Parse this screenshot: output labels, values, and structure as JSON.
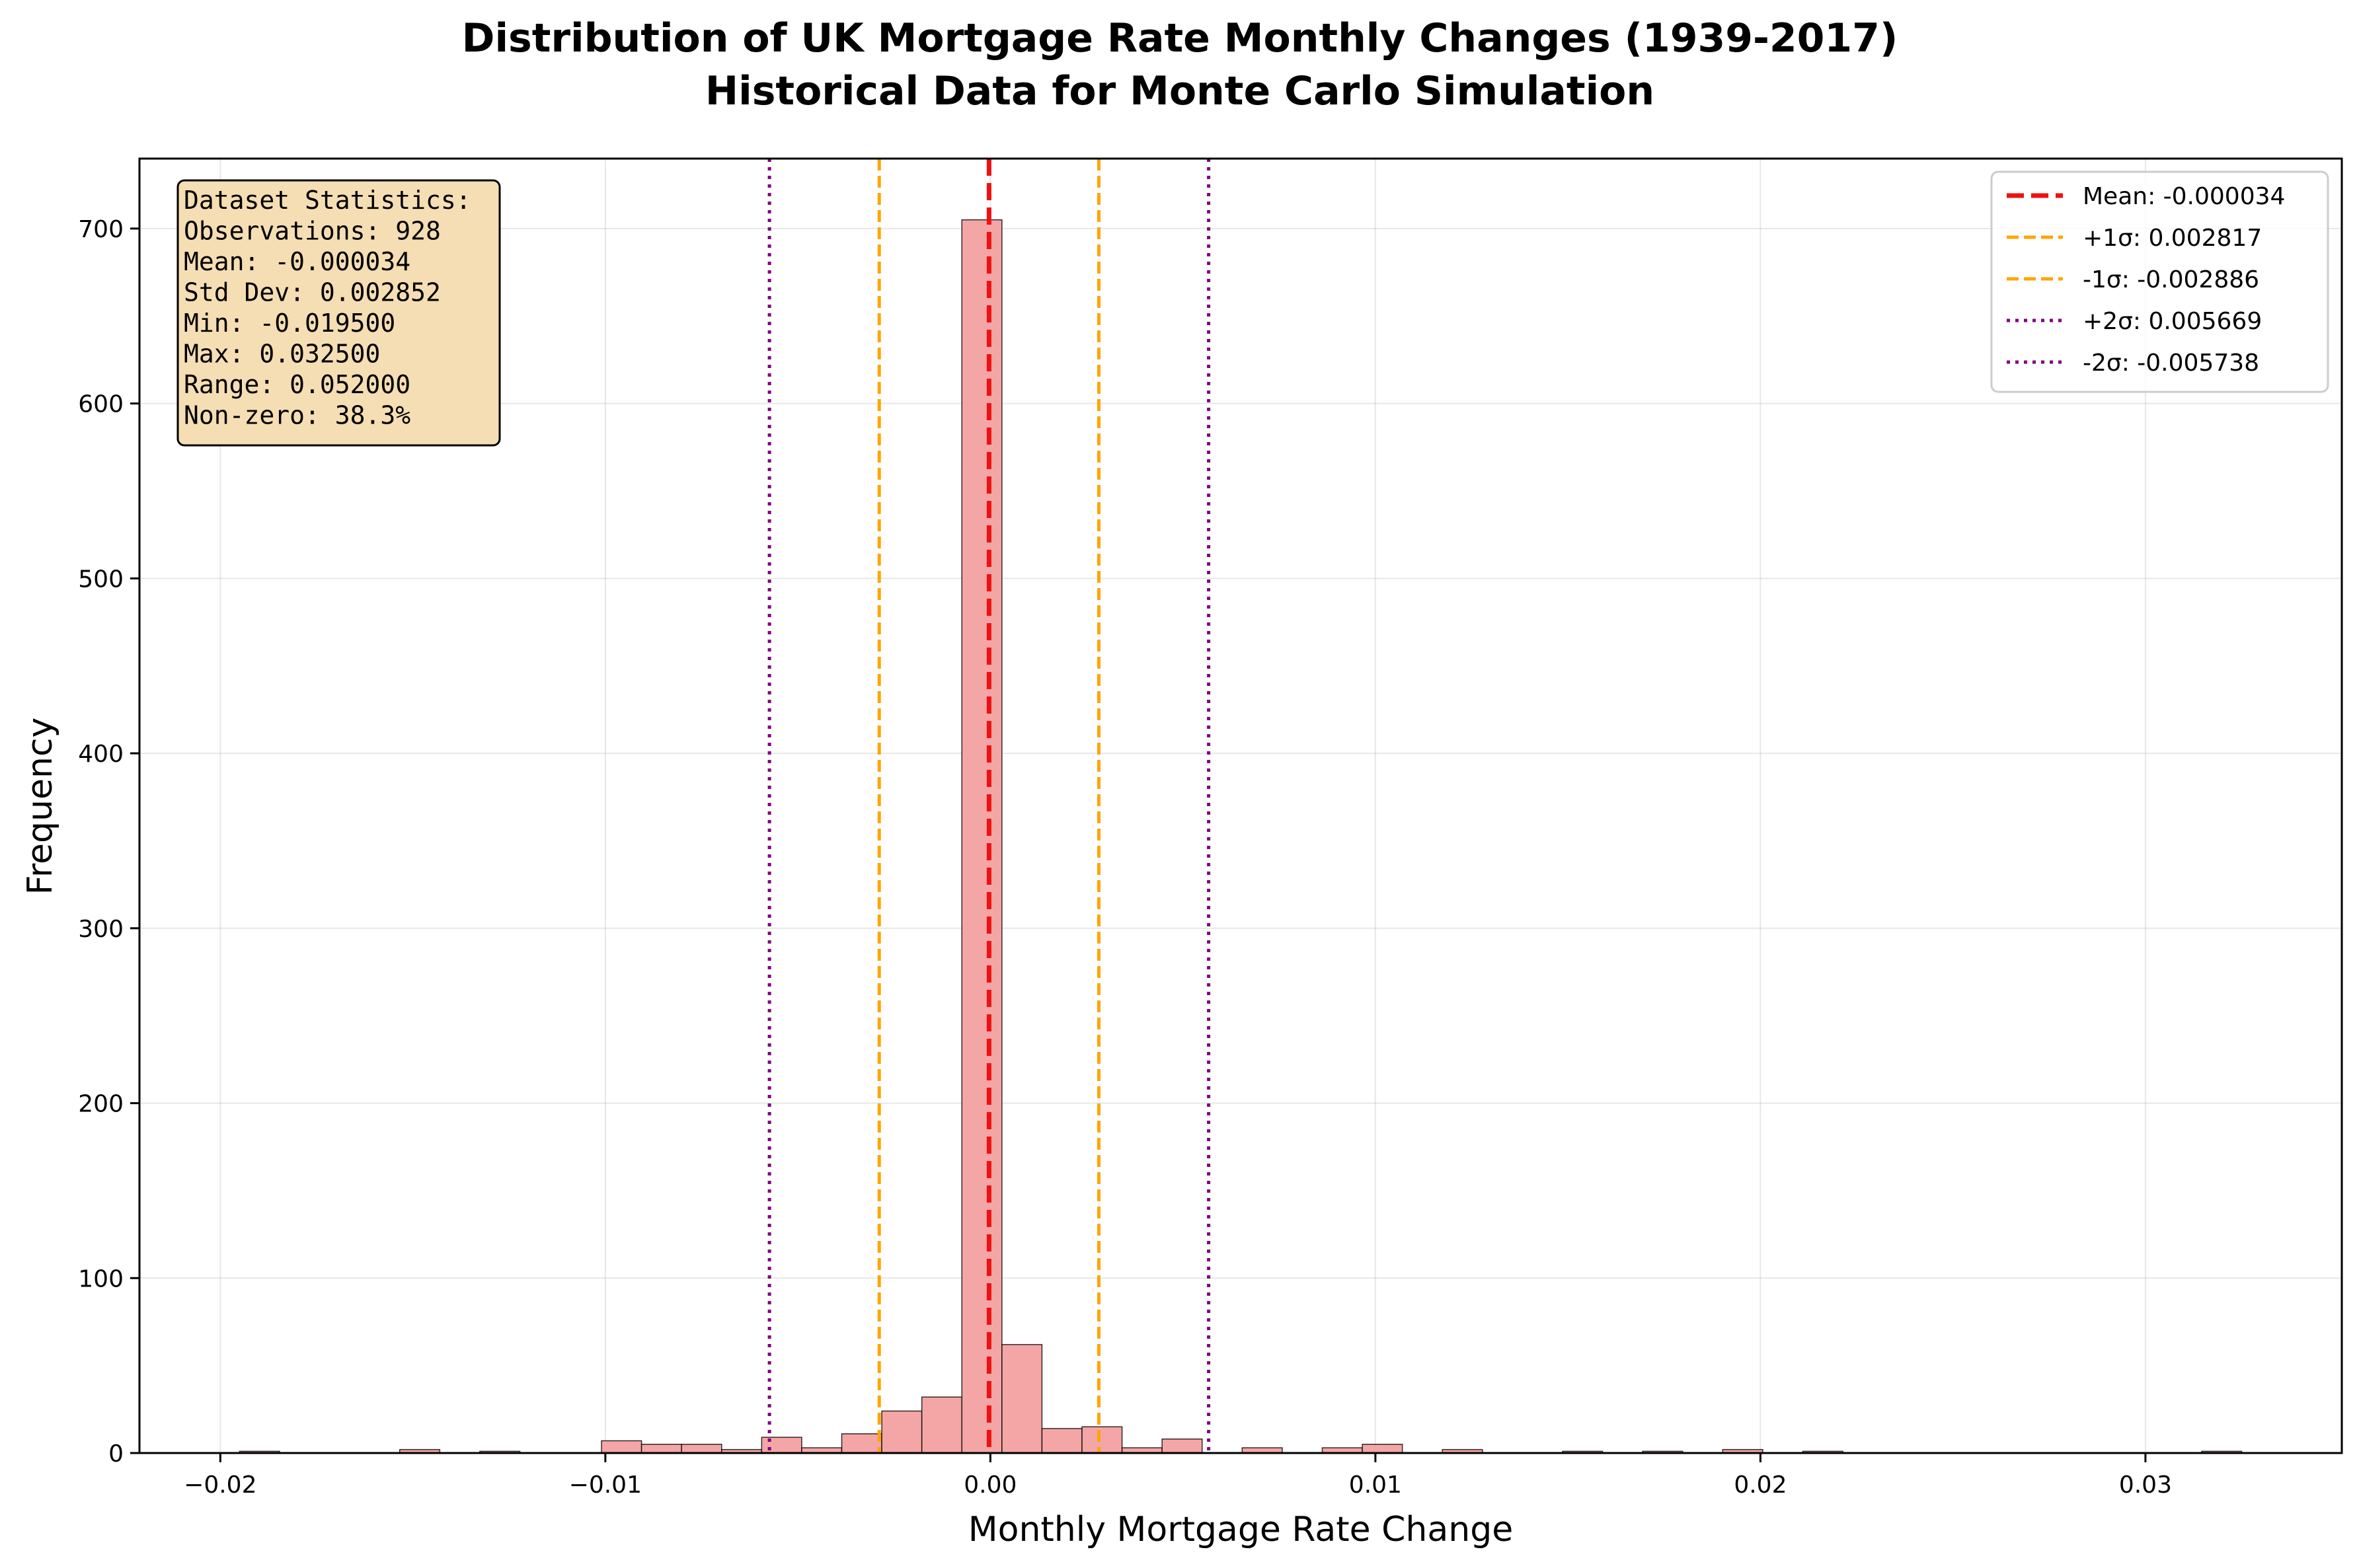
{
  "chart_data": {
    "type": "bar",
    "title": "Distribution of UK Mortgage Rate Monthly Changes (1939-2017)",
    "subtitle": "Historical Data for Monte Carlo Simulation",
    "xlabel": "Monthly Mortgage Rate Change",
    "ylabel": "Frequency",
    "xlim": [
      -0.0221,
      0.0351
    ],
    "ylim": [
      0,
      740
    ],
    "xticks": [
      -0.02,
      -0.01,
      0.0,
      0.01,
      0.02,
      0.03
    ],
    "xtick_labels": [
      "−0.02",
      "−0.01",
      "0.00",
      "0.01",
      "0.02",
      "0.03"
    ],
    "yticks": [
      0,
      100,
      200,
      300,
      400,
      500,
      600,
      700
    ],
    "ytick_labels": [
      "0",
      "100",
      "200",
      "300",
      "400",
      "500",
      "600",
      "700"
    ],
    "grid": true,
    "bin_width": 0.00104,
    "bins": [
      {
        "x0": -0.0195,
        "count": 1
      },
      {
        "x0": -0.01534,
        "count": 2
      },
      {
        "x0": -0.01326,
        "count": 1
      },
      {
        "x0": -0.0101,
        "count": 7
      },
      {
        "x0": -0.00906,
        "count": 5
      },
      {
        "x0": -0.00802,
        "count": 5
      },
      {
        "x0": -0.00698,
        "count": 2
      },
      {
        "x0": -0.00594,
        "count": 9
      },
      {
        "x0": -0.0049,
        "count": 3
      },
      {
        "x0": -0.00386,
        "count": 11
      },
      {
        "x0": -0.00282,
        "count": 24
      },
      {
        "x0": -0.00178,
        "count": 32
      },
      {
        "x0": -0.00074,
        "count": 705
      },
      {
        "x0": 0.0003,
        "count": 62
      },
      {
        "x0": 0.00134,
        "count": 14
      },
      {
        "x0": 0.00238,
        "count": 15
      },
      {
        "x0": 0.00342,
        "count": 3
      },
      {
        "x0": 0.00446,
        "count": 8
      },
      {
        "x0": 0.00654,
        "count": 3
      },
      {
        "x0": 0.00862,
        "count": 3
      },
      {
        "x0": 0.00966,
        "count": 5
      },
      {
        "x0": 0.01174,
        "count": 2
      },
      {
        "x0": 0.01486,
        "count": 1
      },
      {
        "x0": 0.01694,
        "count": 1
      },
      {
        "x0": 0.01902,
        "count": 2
      },
      {
        "x0": 0.0211,
        "count": 1
      },
      {
        "x0": 0.03146,
        "count": 1
      }
    ],
    "bar_color": "#f4a6a6",
    "bar_edge_color": "#000000",
    "reference_lines": [
      {
        "label": "Mean: -0.000034",
        "x": -3.4e-05,
        "color": "#ee1111",
        "style": "dashed-bold"
      },
      {
        "label": "+1σ: 0.002817",
        "x": 0.002817,
        "color": "#ffa500",
        "style": "dashed"
      },
      {
        "label": "-1σ: -0.002886",
        "x": -0.002886,
        "color": "#ffa500",
        "style": "dashed"
      },
      {
        "label": "+2σ: 0.005669",
        "x": 0.005669,
        "color": "#800080",
        "style": "dotted"
      },
      {
        "label": "-2σ: -0.005738",
        "x": -0.005738,
        "color": "#800080",
        "style": "dotted"
      }
    ],
    "legend_position": "top-right",
    "stats_box": {
      "lines": [
        "Dataset Statistics:",
        "Observations: 928",
        "Mean: -0.000034",
        "Std Dev: 0.002852",
        "Min: -0.019500",
        "Max: 0.032500",
        "Range: 0.052000",
        "Non-zero: 38.3%"
      ],
      "position": "top-left",
      "background": "#f5deb3"
    }
  }
}
